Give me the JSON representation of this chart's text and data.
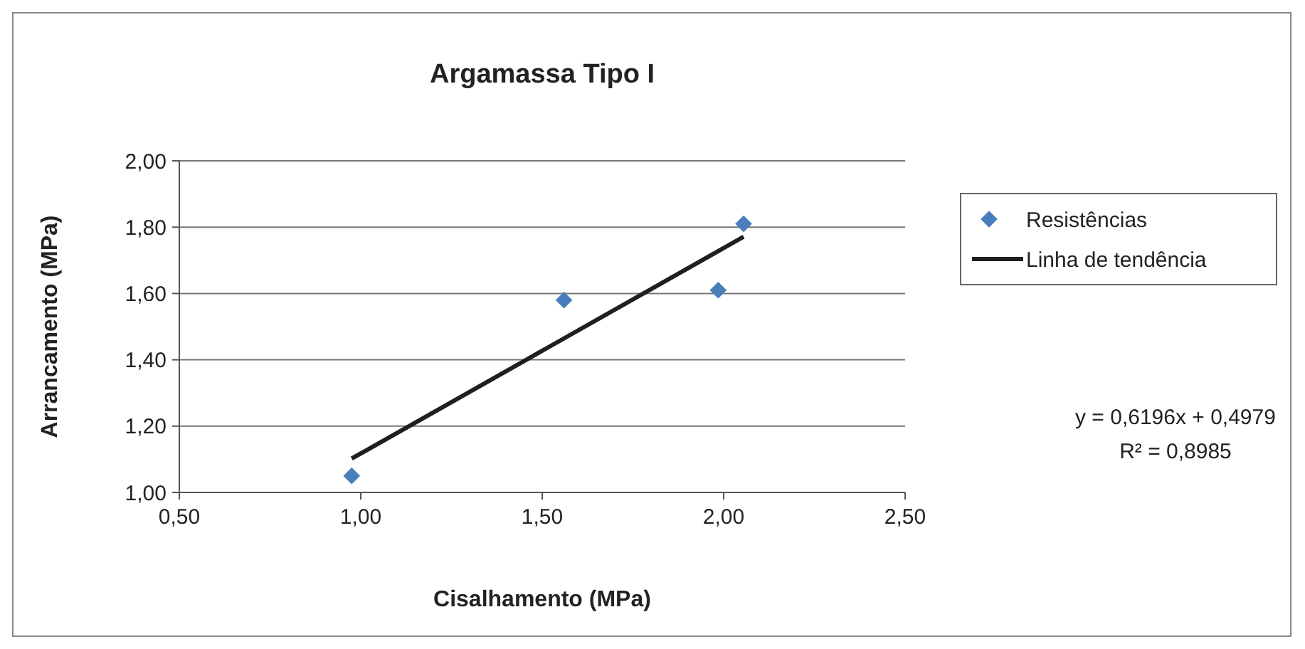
{
  "chart_data": {
    "type": "scatter",
    "title": "Argamassa Tipo I",
    "xlabel": "Cisalhamento (MPa)",
    "ylabel": "Arrancamento (MPa)",
    "xlim": [
      0.5,
      2.5
    ],
    "ylim": [
      1.0,
      2.0
    ],
    "xticks": [
      {
        "value": 0.5,
        "label": "0,50"
      },
      {
        "value": 1.0,
        "label": "1,00"
      },
      {
        "value": 1.5,
        "label": "1,50"
      },
      {
        "value": 2.0,
        "label": "2,00"
      },
      {
        "value": 2.5,
        "label": "2,50"
      }
    ],
    "yticks": [
      {
        "value": 1.0,
        "label": "1,00"
      },
      {
        "value": 1.2,
        "label": "1,20"
      },
      {
        "value": 1.4,
        "label": "1,40"
      },
      {
        "value": 1.6,
        "label": "1,60"
      },
      {
        "value": 1.8,
        "label": "1,80"
      },
      {
        "value": 2.0,
        "label": "2,00"
      }
    ],
    "grid": "y",
    "legend": "right",
    "series": [
      {
        "name": "Resistências",
        "marker": "diamond",
        "color": "#4a7ebb",
        "x": [
          0.975,
          1.56,
          1.985,
          2.055
        ],
        "values": [
          1.05,
          1.58,
          1.61,
          1.81
        ]
      },
      {
        "name": "Linha de tendência",
        "type": "line",
        "marker": "none",
        "line_style": "solid",
        "color": "#1f1f1f",
        "x": [
          0.975,
          2.055
        ],
        "values": [
          1.102,
          1.771
        ]
      }
    ],
    "annotations": [
      "y = 0,6196x + 0,4979",
      "R² = 0,8985"
    ]
  }
}
